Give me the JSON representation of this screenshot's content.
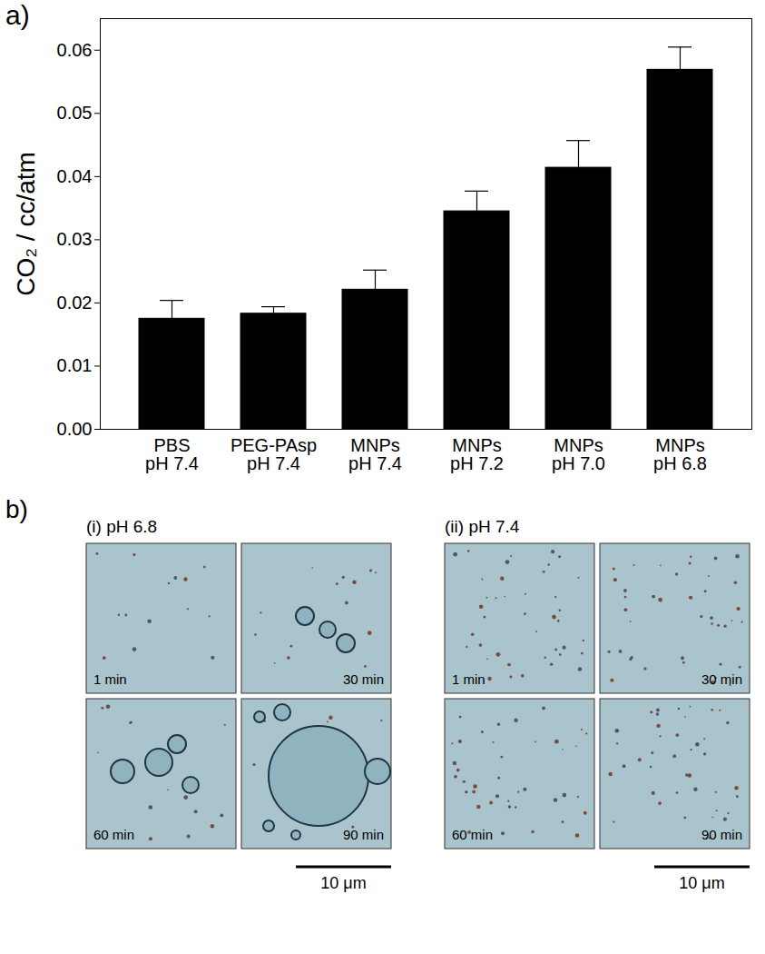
{
  "chart_data": {
    "type": "bar",
    "title": "a)",
    "categories": [
      "PBS\npH 7.4",
      "PEG-PAsp\npH 7.4",
      "MNPs\npH 7.4",
      "MNPs\npH 7.2",
      "MNPs\npH 7.0",
      "MNPs\npH 6.8"
    ],
    "values": [
      0.0175,
      0.0183,
      0.0221,
      0.0345,
      0.0414,
      0.0569
    ],
    "errors": [
      0.0029,
      0.0011,
      0.0031,
      0.0032,
      0.0043,
      0.0036
    ],
    "colors": [
      "#1f3fe0",
      "#22dcea",
      "#e21ee0",
      "#f2f21e",
      "#8c8a12",
      "#12127a"
    ],
    "y_label": "CO₂ / cc/atm",
    "ylim": [
      0,
      0.065
    ],
    "yticks": [
      {
        "value": 0,
        "label": "0.00"
      },
      {
        "value": 0.01,
        "label": "0.01"
      },
      {
        "value": 0.02,
        "label": "0.02"
      },
      {
        "value": 0.03,
        "label": "0.03"
      },
      {
        "value": 0.04,
        "label": "0.04"
      },
      {
        "value": 0.05,
        "label": "0.05"
      },
      {
        "value": 0.06,
        "label": "0.06"
      }
    ],
    "grid": false,
    "data_labels": false
  },
  "panel_b": {
    "label": "b)",
    "groups": [
      {
        "label": "(i) pH 6.8",
        "frames": [
          "1 min",
          "30 min",
          "60 min",
          "90 min"
        ],
        "scale_bar": "10 μm"
      },
      {
        "label": "(ii) pH 7.4",
        "frames": [
          "1 min",
          "30 min",
          "60 min",
          "90 min"
        ],
        "scale_bar": "10 μm"
      }
    ]
  }
}
